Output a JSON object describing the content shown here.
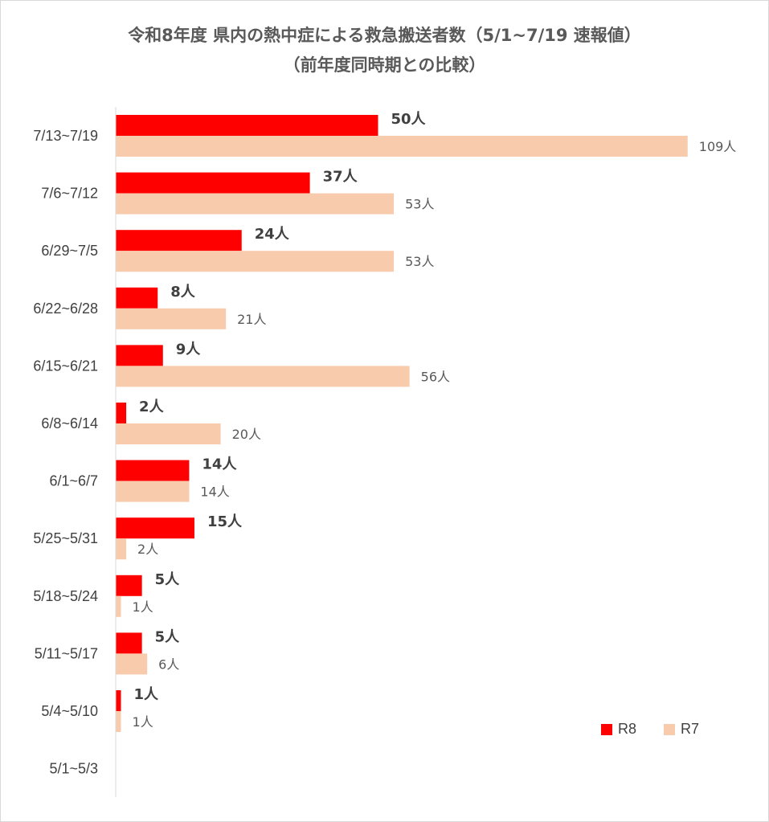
{
  "title": {
    "line1": "令和8年度 県内の熱中症による救急搬送者数（5/1~7/19 速報値）",
    "line2": "（前年度同時期との比較）"
  },
  "colors": {
    "r8": "#ff0000",
    "r7": "#f8cbad"
  },
  "legend": {
    "r8": "R8",
    "r7": "R7"
  },
  "chart_data": {
    "type": "bar",
    "orientation": "horizontal",
    "categories": [
      "7/13~7/19",
      "7/6~7/12",
      "6/29~7/5",
      "6/22~6/28",
      "6/15~6/21",
      "6/8~6/14",
      "6/1~6/7",
      "5/25~5/31",
      "5/18~5/24",
      "5/11~5/17",
      "5/4~5/10",
      "5/1~5/3"
    ],
    "series": [
      {
        "name": "R8",
        "values": [
          50,
          37,
          24,
          8,
          9,
          2,
          14,
          15,
          5,
          5,
          1,
          null
        ],
        "labels": [
          "50人",
          "37人",
          "24人",
          "8人",
          "9人",
          "2人",
          "14人",
          "15人",
          "5人",
          "5人",
          "1人",
          ""
        ]
      },
      {
        "name": "R7",
        "values": [
          109,
          53,
          53,
          21,
          56,
          20,
          14,
          2,
          1,
          6,
          1,
          null
        ],
        "labels": [
          "109人",
          "53人",
          "53人",
          "21人",
          "56人",
          "20人",
          "14人",
          "2人",
          "1人",
          "6人",
          "1人",
          ""
        ]
      }
    ],
    "xlim": [
      0,
      120
    ],
    "legend_position": "bottom-right",
    "grid": false
  }
}
